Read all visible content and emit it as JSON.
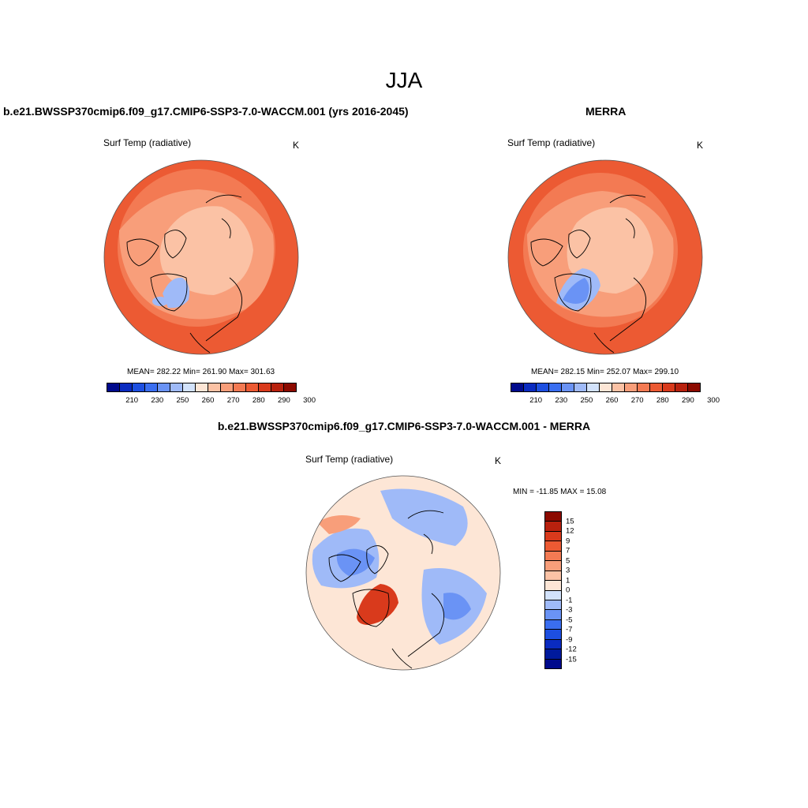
{
  "figure": {
    "title": "JJA",
    "panel1": {
      "title": "b.e21.BWSSP370cmip6.f09_g17.CMIP6-SSP3-7.0-WACCM.001 (yrs 2016-2045)",
      "variable": "Surf Temp (radiative)",
      "units": "K",
      "stats": "MEAN= 282.22  Min= 261.90  Max= 301.63"
    },
    "panel2": {
      "title": "MERRA",
      "variable": "Surf Temp (radiative)",
      "units": "K",
      "stats": "MEAN= 282.15  Min= 252.07  Max= 299.10"
    },
    "panel3": {
      "title": "b.e21.BWSSP370cmip6.f09_g17.CMIP6-SSP3-7.0-WACCM.001 - MERRA",
      "variable": "Surf Temp (radiative)",
      "units": "K",
      "stats": "MIN = -11.85 MAX =  15.08"
    }
  },
  "abs_colorbar": {
    "labels": [
      "210",
      "230",
      "250",
      "260",
      "270",
      "280",
      "290",
      "300"
    ],
    "colors": [
      "#000a8c",
      "#0a2bc0",
      "#1d4fe0",
      "#3a6ef0",
      "#6a93f5",
      "#9fbaf8",
      "#d2e2fb",
      "#fde6d6",
      "#fbc2a5",
      "#f89e7a",
      "#f37a53",
      "#ec5a33",
      "#d93a1c",
      "#b8210e",
      "#8c0a00"
    ]
  },
  "diff_colorbar": {
    "labels": [
      "15",
      "12",
      "9",
      "7",
      "5",
      "3",
      "1",
      "0",
      "-1",
      "-3",
      "-5",
      "-7",
      "-9",
      "-12",
      "-15"
    ],
    "colors": [
      "#8c0a00",
      "#b8210e",
      "#d93a1c",
      "#ec5a33",
      "#f37a53",
      "#f89e7a",
      "#fbc2a5",
      "#fde6d6",
      "#d2e2fb",
      "#9fbaf8",
      "#6a93f5",
      "#3a6ef0",
      "#1d4fe0",
      "#0a2bc0",
      "#001a9c",
      "#000a8c"
    ]
  },
  "map_colors": {
    "warm_outer": "#ec5a33",
    "warm_mid": "#f37a53",
    "warm_light": "#f89e7a",
    "pale": "#fbc2a5",
    "cold_light": "#9fbaf8",
    "cold_mid": "#6a93f5",
    "diff_neutral": "#fde6d6",
    "diff_blue": "#9fbaf8",
    "diff_blue_mid": "#6a93f5",
    "diff_red": "#d93a1c"
  }
}
